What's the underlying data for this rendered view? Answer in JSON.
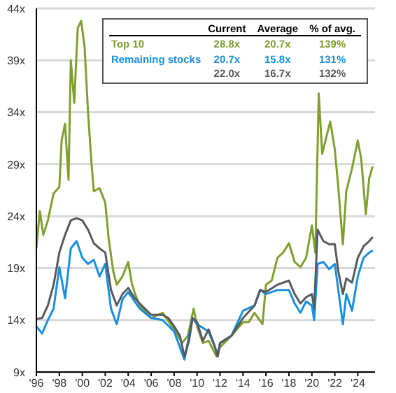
{
  "chart_data": {
    "type": "line",
    "annotations": [
      "Current",
      "Average",
      "% of avg.",
      "28.8x",
      "20.7x",
      "139%",
      "20.7x",
      "15.8x",
      "131%",
      "22.0x",
      "16.7x",
      "132%"
    ],
    "xlim": [
      1996,
      2025.5
    ],
    "xticks": [
      {
        "value": 1996,
        "label": "'96"
      },
      {
        "value": 1998,
        "label": "'98"
      },
      {
        "value": 2000,
        "label": "'00"
      },
      {
        "value": 2002,
        "label": "'02"
      },
      {
        "value": 2004,
        "label": "'04"
      },
      {
        "value": 2006,
        "label": "'06"
      },
      {
        "value": 2008,
        "label": "'08"
      },
      {
        "value": 2010,
        "label": "'10"
      },
      {
        "value": 2012,
        "label": "'12"
      },
      {
        "value": 2014,
        "label": "'14"
      },
      {
        "value": 2016,
        "label": "'16"
      },
      {
        "value": 2018,
        "label": "'18"
      },
      {
        "value": 2020,
        "label": "'20"
      },
      {
        "value": 2022,
        "label": "'22"
      },
      {
        "value": 2024,
        "label": "'24"
      }
    ],
    "ylim": [
      9,
      44
    ],
    "yticks": [
      {
        "value": 9,
        "label": "9x"
      },
      {
        "value": 14,
        "label": "14x"
      },
      {
        "value": 19,
        "label": "19x"
      },
      {
        "value": 24,
        "label": "24x"
      },
      {
        "value": 29,
        "label": "29x"
      },
      {
        "value": 34,
        "label": "34x"
      },
      {
        "value": 39,
        "label": "39x"
      },
      {
        "value": 44,
        "label": "44x"
      }
    ],
    "grid": "y",
    "legend": "top",
    "line_style": "solid",
    "marker": "none",
    "series": [
      {
        "name": "Top 10",
        "color": "#7f9f2f",
        "x": [
          1996,
          1996.3,
          1996.6,
          1997,
          1997.5,
          1998,
          1998.2,
          1998.5,
          1998.8,
          1999,
          1999.3,
          1999.6,
          1999.9,
          2000.2,
          2000.5,
          2000.8,
          2001,
          2001.5,
          2002,
          2002.3,
          2002.7,
          2003,
          2003.5,
          2004,
          2004.3,
          2004.6,
          2005,
          2006,
          2007,
          2008,
          2008.7,
          2009.2,
          2009.7,
          2010,
          2010.5,
          2011,
          2011.7,
          2012,
          2013,
          2014,
          2014.5,
          2015,
          2015.7,
          2016,
          2016.5,
          2017,
          2017.5,
          2018,
          2018.5,
          2019,
          2019.5,
          2020,
          2020.3,
          2020.6,
          2020.9,
          2021.3,
          2021.6,
          2022,
          2022.3,
          2022.7,
          2023,
          2023.5,
          2024,
          2024.3,
          2024.7,
          2025,
          2025.3
        ],
        "values": [
          20.9,
          24.5,
          22.2,
          23.6,
          26.2,
          26.8,
          31.3,
          32.9,
          27.5,
          39.0,
          34.9,
          42.1,
          42.8,
          40.3,
          34.0,
          29.1,
          26.4,
          26.7,
          25.3,
          21.8,
          18.7,
          17.4,
          18.2,
          19.6,
          17.6,
          16.5,
          15.4,
          14.2,
          14.7,
          13.1,
          11.8,
          12.5,
          15.1,
          13.4,
          11.8,
          12.0,
          10.5,
          11.4,
          12.5,
          13.8,
          13.8,
          14.7,
          13.6,
          17.4,
          17.8,
          20.0,
          20.5,
          21.4,
          19.6,
          19.1,
          20.0,
          23.1,
          20.5,
          35.8,
          30.0,
          31.8,
          33.1,
          30.4,
          26.8,
          21.3,
          26.4,
          28.6,
          31.3,
          29.5,
          24.2,
          27.7,
          28.8
        ]
      },
      {
        "name": "Remaining stocks",
        "color": "#1a8fe0",
        "x": [
          1996,
          1996.5,
          1997,
          1997.5,
          1998,
          1998.5,
          1999,
          1999.5,
          2000,
          2000.5,
          2001,
          2001.5,
          2002,
          2002.5,
          2003,
          2003.5,
          2004,
          2005,
          2006,
          2007,
          2008,
          2008.9,
          2009.6,
          2010,
          2011,
          2011.8,
          2012,
          2013,
          2014,
          2015,
          2015.5,
          2016,
          2017,
          2018,
          2018.5,
          2019,
          2019.5,
          2020,
          2020.2,
          2020.5,
          2021,
          2021.5,
          2022,
          2022.3,
          2022.7,
          2023,
          2023.5,
          2024,
          2024.5,
          2025,
          2025.3
        ],
        "values": [
          13.4,
          12.7,
          14.0,
          15.1,
          19.1,
          16.1,
          20.9,
          21.6,
          20.0,
          19.4,
          19.8,
          18.2,
          19.4,
          15.1,
          13.6,
          16.0,
          16.7,
          15.1,
          14.2,
          14.0,
          12.9,
          10.2,
          14.2,
          13.6,
          12.9,
          10.7,
          11.8,
          12.5,
          14.9,
          15.4,
          16.9,
          16.5,
          16.9,
          16.9,
          15.6,
          14.7,
          15.8,
          15.4,
          14.0,
          19.4,
          19.6,
          18.9,
          19.4,
          16.9,
          13.6,
          16.5,
          14.9,
          18.2,
          20.0,
          20.5,
          20.7
        ]
      },
      {
        "color": "#555a5f",
        "x": [
          1996,
          1996.5,
          1997,
          1997.5,
          1998,
          1998.5,
          1999,
          1999.5,
          2000,
          2000.5,
          2001,
          2001.5,
          2002,
          2002.5,
          2003,
          2003.5,
          2004,
          2004.5,
          2005,
          2006,
          2007,
          2007.5,
          2008,
          2008.5,
          2008.9,
          2009.3,
          2009.6,
          2010,
          2010.5,
          2011,
          2011.5,
          2011.8,
          2012,
          2013,
          2014,
          2015,
          2015.5,
          2016,
          2017,
          2017.5,
          2018,
          2018.5,
          2019,
          2019.5,
          2020,
          2020.2,
          2020.5,
          2021,
          2021.5,
          2022,
          2022.3,
          2022.7,
          2023,
          2023.5,
          2024,
          2024.5,
          2025,
          2025.3
        ],
        "values": [
          14.1,
          14.2,
          15.4,
          17.4,
          20.5,
          22.2,
          23.6,
          23.8,
          23.6,
          22.7,
          21.4,
          20.9,
          20.5,
          16.9,
          15.4,
          16.5,
          17.1,
          16.2,
          15.6,
          14.5,
          14.5,
          14.2,
          13.4,
          12.5,
          10.5,
          12.0,
          14.2,
          13.8,
          12.0,
          13.1,
          11.6,
          10.5,
          11.8,
          12.5,
          14.2,
          15.4,
          16.9,
          16.7,
          17.4,
          17.6,
          17.8,
          16.5,
          15.6,
          16.2,
          16.5,
          15.1,
          22.7,
          21.6,
          21.3,
          21.3,
          18.7,
          16.5,
          18.0,
          17.6,
          20.0,
          21.1,
          21.6,
          22.0
        ]
      }
    ]
  }
}
